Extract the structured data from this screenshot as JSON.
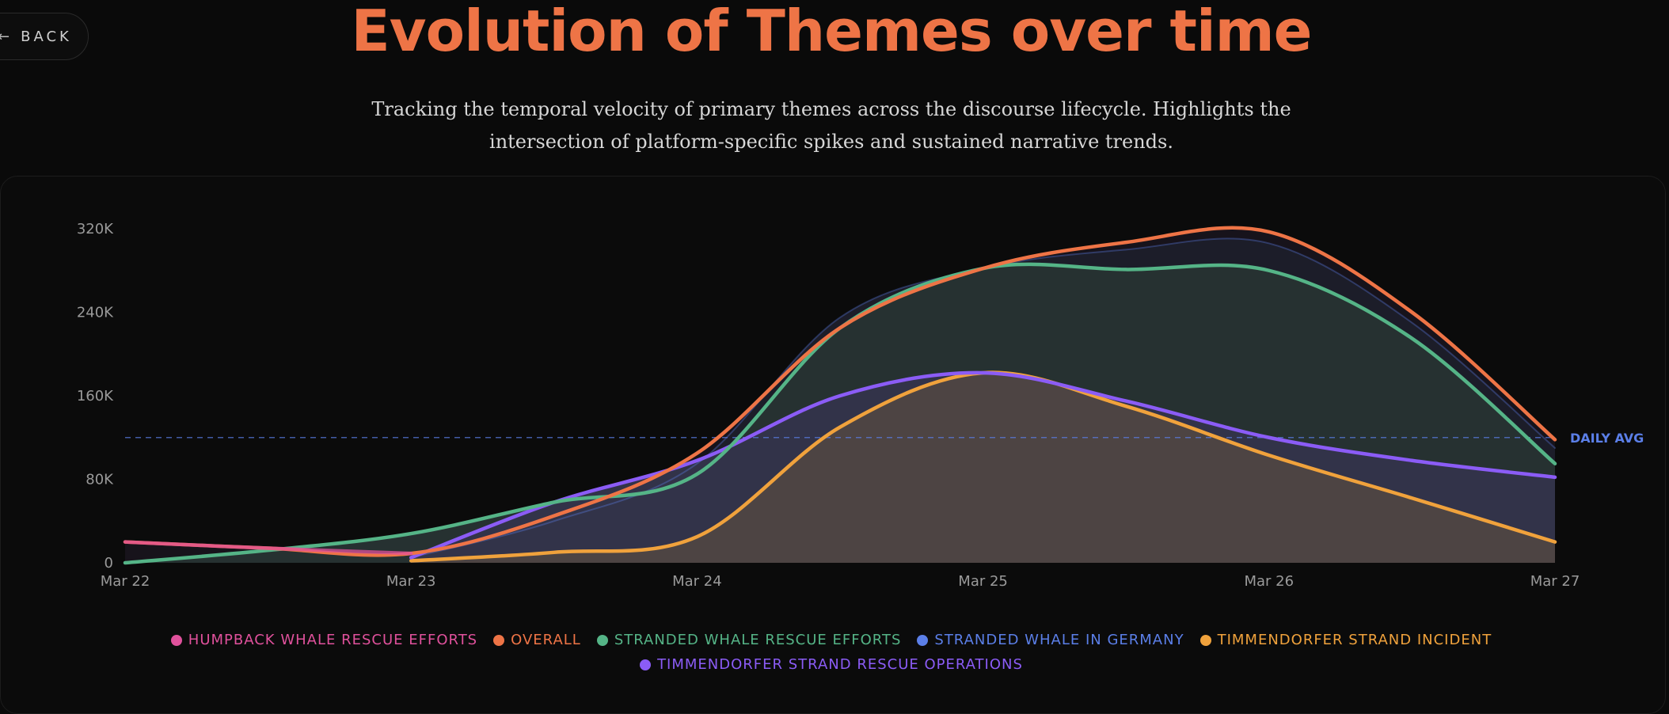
{
  "back": {
    "label": "BACK",
    "icon": "arrow-left-icon"
  },
  "page": {
    "title": "Evolution of Themes over time",
    "subtitle": "Tracking the temporal velocity of primary themes across the discourse lifecycle. Highlights the intersection of platform-specific spikes and sustained narrative trends."
  },
  "legend": [
    {
      "label": "HUMPBACK WHALE RESCUE EFFORTS",
      "color": "#e0519c"
    },
    {
      "label": "OVERALL",
      "color": "#ee7446"
    },
    {
      "label": "STRANDED WHALE RESCUE EFFORTS",
      "color": "#55b487"
    },
    {
      "label": "STRANDED WHALE IN GERMANY",
      "color": "#5b7fe8"
    },
    {
      "label": "TIMMENDORFER STRAND INCIDENT",
      "color": "#f0a23c"
    },
    {
      "label": "TIMMENDORFER STRAND RESCUE OPERATIONS",
      "color": "#8b5cf6"
    }
  ],
  "chart_data": {
    "type": "area",
    "x": [
      "Mar 22",
      "Mar 23",
      "Mar 24",
      "Mar 25",
      "Mar 26",
      "Mar 27"
    ],
    "yticks": [
      "0",
      "80K",
      "160K",
      "240K",
      "320K"
    ],
    "ylim": [
      0,
      320000
    ],
    "grid": false,
    "legend_position": "bottom",
    "reference_line": {
      "label": "DAILY AVG",
      "value": 120000,
      "color": "#5b7fe8"
    },
    "series": [
      {
        "name": "HUMPBACK WHALE RESCUE EFFORTS",
        "color": "#e0519c",
        "points": [
          [
            "Mar 22",
            20000
          ],
          [
            "Mar 22 12:00",
            14000
          ],
          [
            "Mar 23",
            9000
          ]
        ]
      },
      {
        "name": "OVERALL",
        "color": "#ee7446",
        "points": [
          [
            "Mar 22",
            20000
          ],
          [
            "Mar 22 12:00",
            14000
          ],
          [
            "Mar 23",
            9000
          ],
          [
            "Mar 23 12:00",
            45000
          ],
          [
            "Mar 24",
            105000
          ],
          [
            "Mar 24 12:00",
            225000
          ],
          [
            "Mar 25",
            282000
          ],
          [
            "Mar 25 12:00",
            307000
          ],
          [
            "Mar 26",
            317000
          ],
          [
            "Mar 26 12:00",
            240000
          ],
          [
            "Mar 27",
            118000
          ]
        ]
      },
      {
        "name": "STRANDED WHALE RESCUE EFFORTS",
        "color": "#55b487",
        "points": [
          [
            "Mar 22",
            0
          ],
          [
            "Mar 22 12:00",
            12000
          ],
          [
            "Mar 23",
            28000
          ],
          [
            "Mar 23 12:00",
            58000
          ],
          [
            "Mar 24",
            85000
          ],
          [
            "Mar 24 12:00",
            225000
          ],
          [
            "Mar 25",
            282000
          ],
          [
            "Mar 25 12:00",
            281000
          ],
          [
            "Mar 26",
            280000
          ],
          [
            "Mar 26 12:00",
            215000
          ],
          [
            "Mar 27",
            95000
          ]
        ]
      },
      {
        "name": "STRANDED WHALE IN GERMANY",
        "color": "#5b7fe8",
        "points": [
          [
            "Mar 23",
            5000
          ],
          [
            "Mar 23 12:00",
            40000
          ],
          [
            "Mar 24",
            95000
          ],
          [
            "Mar 24 12:00",
            235000
          ],
          [
            "Mar 25",
            282000
          ],
          [
            "Mar 25 12:00",
            300000
          ],
          [
            "Mar 26",
            306000
          ],
          [
            "Mar 26 12:00",
            230000
          ],
          [
            "Mar 27",
            110000
          ]
        ]
      },
      {
        "name": "TIMMENDORFER STRAND INCIDENT",
        "color": "#f0a23c",
        "points": [
          [
            "Mar 23",
            2000
          ],
          [
            "Mar 23 12:00",
            10000
          ],
          [
            "Mar 24",
            25000
          ],
          [
            "Mar 24 12:00",
            130000
          ],
          [
            "Mar 25",
            182000
          ],
          [
            "Mar 25 12:00",
            150000
          ],
          [
            "Mar 26",
            103000
          ],
          [
            "Mar 26 12:00",
            62000
          ],
          [
            "Mar 27",
            20000
          ]
        ]
      },
      {
        "name": "TIMMENDORFER STRAND RESCUE OPERATIONS",
        "color": "#8b5cf6",
        "points": [
          [
            "Mar 23",
            5000
          ],
          [
            "Mar 23 12:00",
            58000
          ],
          [
            "Mar 24",
            98000
          ],
          [
            "Mar 24 12:00",
            160000
          ],
          [
            "Mar 25",
            182000
          ],
          [
            "Mar 25 12:00",
            155000
          ],
          [
            "Mar 26",
            120000
          ],
          [
            "Mar 26 12:00",
            98000
          ],
          [
            "Mar 27",
            82000
          ]
        ]
      }
    ]
  }
}
